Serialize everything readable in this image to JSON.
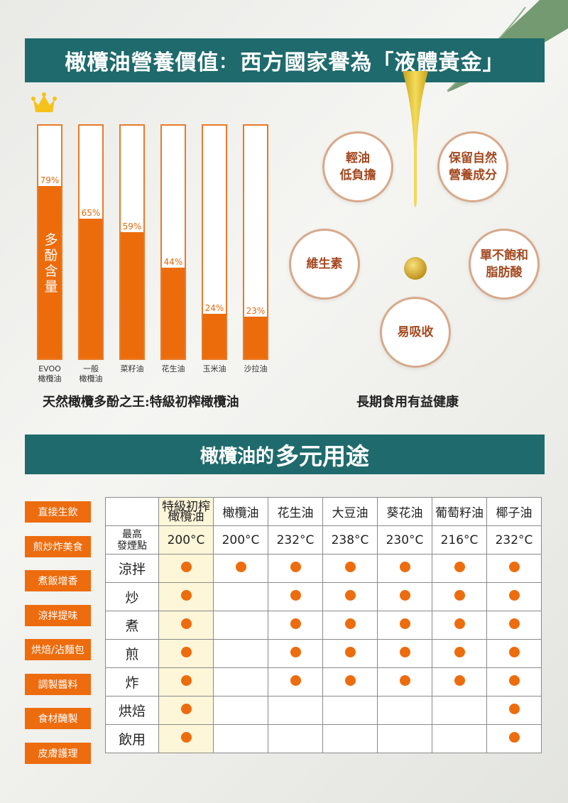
{
  "header": {
    "title_main": "橄欖油營養價值",
    "title_colon": "：",
    "title_sub": "西方國家譽為「液體黃金」"
  },
  "chart_data": {
    "type": "bar",
    "categories": [
      "EVOO\n橄欖油",
      "一般\n橄欖油",
      "菜籽油",
      "花生油",
      "玉米油",
      "沙拉油"
    ],
    "values": [
      79,
      65,
      59,
      44,
      24,
      23
    ],
    "value_labels": [
      "79%",
      "65%",
      "59%",
      "44%",
      "24%",
      "23%"
    ],
    "ylabel": "多酚含量",
    "ylim": [
      0,
      100
    ],
    "caption": "天然橄欖多酚之王:特級初榨橄欖油"
  },
  "benefits": {
    "items": [
      "輕油\n低負擔",
      "保留自然\n營養成分",
      "維生素",
      "單不飽和\n脂肪酸",
      "易吸收"
    ],
    "caption": "長期食用有益健康"
  },
  "uses_banner": {
    "pre": "橄欖油的",
    "emph": "多元用途"
  },
  "uses_list": [
    "直接生飲",
    "煎炒炸美食",
    "煮飯增香",
    "涼拌提味",
    "烘焙/沾麵包",
    "調製醬料",
    "食材醃製",
    "皮膚護理"
  ],
  "table": {
    "oils": [
      "特級初榨\n橄欖油",
      "橄欖油",
      "花生油",
      "大豆油",
      "葵花油",
      "葡萄籽油",
      "椰子油"
    ],
    "smoke_label": "最高\n發煙點",
    "smoke_points": [
      "200°C",
      "200°C",
      "232°C",
      "238°C",
      "230°C",
      "216°C",
      "232°C"
    ],
    "methods": [
      {
        "name": "涼拌",
        "marks": [
          1,
          1,
          1,
          1,
          1,
          1,
          1
        ]
      },
      {
        "name": "炒",
        "marks": [
          1,
          0,
          1,
          1,
          1,
          1,
          1
        ]
      },
      {
        "name": "煮",
        "marks": [
          1,
          0,
          1,
          1,
          1,
          1,
          1
        ]
      },
      {
        "name": "煎",
        "marks": [
          1,
          0,
          1,
          1,
          1,
          1,
          1
        ]
      },
      {
        "name": "炸",
        "marks": [
          1,
          0,
          1,
          1,
          1,
          1,
          1
        ]
      },
      {
        "name": "烘焙",
        "marks": [
          1,
          0,
          0,
          0,
          0,
          0,
          1
        ]
      },
      {
        "name": "飲用",
        "marks": [
          1,
          0,
          0,
          0,
          0,
          0,
          1
        ]
      }
    ]
  },
  "colors": {
    "teal": "#1f6a6c",
    "orange": "#ec6c0c",
    "evoo_highlight": "#fdf6d8"
  },
  "icons": [
    "crown-icon",
    "oil-drop-icon",
    "leaf-image"
  ]
}
